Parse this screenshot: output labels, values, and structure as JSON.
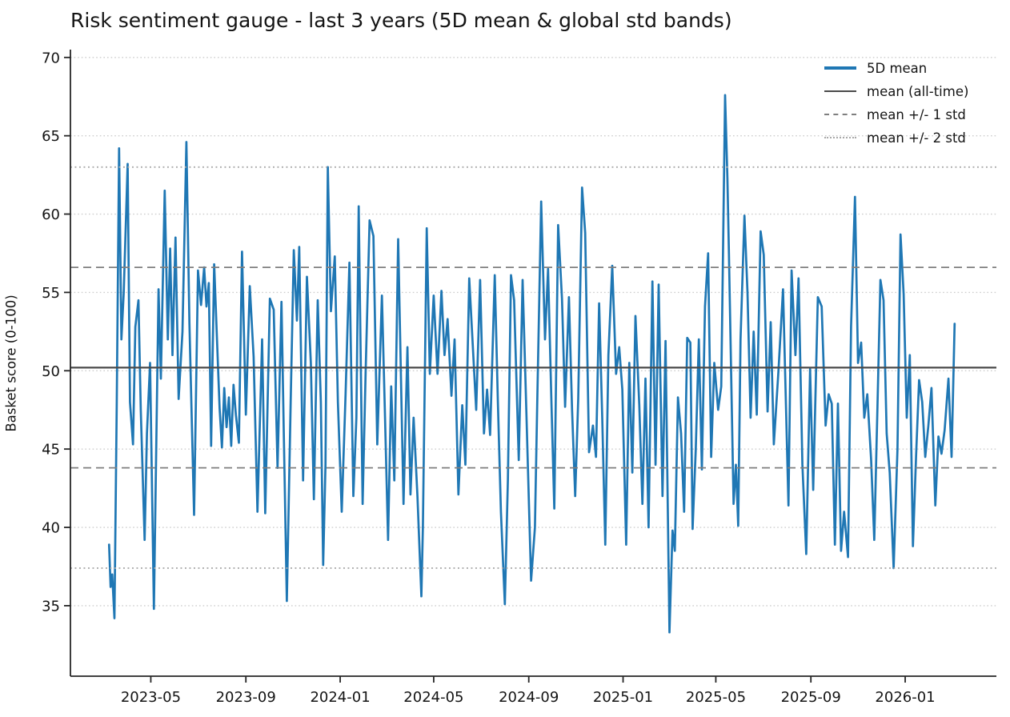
{
  "chart_data": {
    "type": "line",
    "title": "Risk sentiment gauge - last 3 years (5D mean & global std bands)",
    "xlabel": "",
    "ylabel": "Basket score (0-100)",
    "grid": "horizontal dotted gridlines at each y tick",
    "legend_position": "upper right, no frame",
    "ylim": [
      30.5,
      70.5
    ],
    "yticks": [
      35,
      40,
      45,
      50,
      55,
      60,
      65,
      70
    ],
    "x_unit": "days since first plotted point (approx 2023-03-08)",
    "xlim_days": [
      -50,
      1148
    ],
    "xticks": [
      {
        "label": "2023-05",
        "day": 54
      },
      {
        "label": "2023-09",
        "day": 177
      },
      {
        "label": "2024-01",
        "day": 299
      },
      {
        "label": "2024-05",
        "day": 420
      },
      {
        "label": "2024-09",
        "day": 543
      },
      {
        "label": "2025-01",
        "day": 665
      },
      {
        "label": "2025-05",
        "day": 785
      },
      {
        "label": "2025-09",
        "day": 908
      },
      {
        "label": "2026-01",
        "day": 1030
      }
    ],
    "legend": [
      {
        "label": "5D mean",
        "style": "series"
      },
      {
        "label": "mean (all-time)",
        "style": "mean"
      },
      {
        "label": "mean +/- 1 std",
        "style": "std1"
      },
      {
        "label": "mean +/- 2 std",
        "style": "std2"
      }
    ],
    "stats": {
      "mean_all_time": 50.2,
      "std": 6.4,
      "mean_plus_1std": 56.6,
      "mean_minus_1std": 43.8,
      "mean_plus_2std": 63.0,
      "mean_minus_2std": 37.4
    },
    "series": [
      {
        "name": "5D mean",
        "color": "#1f77b4",
        "points": [
          [
            0,
            38.9
          ],
          [
            2,
            36.2
          ],
          [
            4,
            37.0
          ],
          [
            7,
            34.2
          ],
          [
            10,
            48.0
          ],
          [
            13,
            64.2
          ],
          [
            16,
            52.0
          ],
          [
            19,
            55.0
          ],
          [
            24,
            63.2
          ],
          [
            27,
            48.0
          ],
          [
            31,
            45.3
          ],
          [
            34,
            52.8
          ],
          [
            38,
            54.5
          ],
          [
            41,
            47.5
          ],
          [
            46,
            39.2
          ],
          [
            49,
            46.0
          ],
          [
            53,
            50.5
          ],
          [
            58,
            34.8
          ],
          [
            61,
            45.0
          ],
          [
            64,
            55.2
          ],
          [
            67,
            49.5
          ],
          [
            72,
            61.5
          ],
          [
            76,
            52.0
          ],
          [
            79,
            57.8
          ],
          [
            82,
            51.0
          ],
          [
            86,
            58.5
          ],
          [
            90,
            48.2
          ],
          [
            95,
            52.5
          ],
          [
            100,
            64.6
          ],
          [
            104,
            53.0
          ],
          [
            110,
            40.8
          ],
          [
            115,
            56.4
          ],
          [
            119,
            54.2
          ],
          [
            123,
            56.6
          ],
          [
            126,
            54.1
          ],
          [
            129,
            55.6
          ],
          [
            132,
            45.2
          ],
          [
            136,
            56.8
          ],
          [
            140,
            51.5
          ],
          [
            143,
            47.6
          ],
          [
            146,
            45.1
          ],
          [
            149,
            48.9
          ],
          [
            152,
            46.4
          ],
          [
            155,
            48.3
          ],
          [
            158,
            45.2
          ],
          [
            161,
            49.1
          ],
          [
            164,
            47.2
          ],
          [
            168,
            45.4
          ],
          [
            172,
            57.6
          ],
          [
            177,
            47.2
          ],
          [
            182,
            55.4
          ],
          [
            187,
            50.9
          ],
          [
            192,
            41.0
          ],
          [
            198,
            52.0
          ],
          [
            202,
            40.9
          ],
          [
            208,
            54.6
          ],
          [
            213,
            53.9
          ],
          [
            218,
            43.8
          ],
          [
            223,
            54.4
          ],
          [
            226,
            46.0
          ],
          [
            230,
            35.3
          ],
          [
            235,
            48.0
          ],
          [
            239,
            57.7
          ],
          [
            243,
            53.2
          ],
          [
            246,
            57.9
          ],
          [
            251,
            43.0
          ],
          [
            256,
            56.0
          ],
          [
            261,
            50.5
          ],
          [
            265,
            41.8
          ],
          [
            270,
            54.5
          ],
          [
            274,
            48.0
          ],
          [
            277,
            37.6
          ],
          [
            280,
            44.0
          ],
          [
            283,
            63.0
          ],
          [
            287,
            53.8
          ],
          [
            292,
            57.3
          ],
          [
            296,
            48.0
          ],
          [
            301,
            41.0
          ],
          [
            306,
            48.5
          ],
          [
            311,
            56.9
          ],
          [
            316,
            42.0
          ],
          [
            320,
            47.0
          ],
          [
            323,
            60.5
          ],
          [
            328,
            41.5
          ],
          [
            332,
            50.0
          ],
          [
            337,
            59.6
          ],
          [
            342,
            58.6
          ],
          [
            347,
            45.3
          ],
          [
            353,
            54.8
          ],
          [
            357,
            47.0
          ],
          [
            361,
            39.2
          ],
          [
            365,
            49.0
          ],
          [
            369,
            43.0
          ],
          [
            374,
            58.4
          ],
          [
            381,
            41.5
          ],
          [
            386,
            51.5
          ],
          [
            390,
            42.1
          ],
          [
            394,
            47.0
          ],
          [
            399,
            42.0
          ],
          [
            404,
            35.6
          ],
          [
            406,
            40.0
          ],
          [
            411,
            59.1
          ],
          [
            415,
            49.8
          ],
          [
            420,
            54.8
          ],
          [
            425,
            49.8
          ],
          [
            430,
            55.1
          ],
          [
            434,
            51.0
          ],
          [
            438,
            53.3
          ],
          [
            443,
            48.4
          ],
          [
            447,
            52.0
          ],
          [
            452,
            42.1
          ],
          [
            457,
            47.8
          ],
          [
            461,
            44.0
          ],
          [
            466,
            55.9
          ],
          [
            475,
            47.5
          ],
          [
            480,
            55.8
          ],
          [
            485,
            46.0
          ],
          [
            489,
            48.8
          ],
          [
            493,
            45.9
          ],
          [
            499,
            56.1
          ],
          [
            503,
            48.0
          ],
          [
            507,
            41.0
          ],
          [
            512,
            35.1
          ],
          [
            516,
            43.0
          ],
          [
            520,
            56.1
          ],
          [
            524,
            54.5
          ],
          [
            530,
            44.3
          ],
          [
            535,
            55.8
          ],
          [
            539,
            49.0
          ],
          [
            546,
            36.6
          ],
          [
            551,
            40.0
          ],
          [
            554,
            48.0
          ],
          [
            559,
            60.8
          ],
          [
            564,
            52.0
          ],
          [
            568,
            56.5
          ],
          [
            572,
            48.6
          ],
          [
            576,
            41.2
          ],
          [
            581,
            59.3
          ],
          [
            586,
            54.6
          ],
          [
            590,
            47.7
          ],
          [
            595,
            54.7
          ],
          [
            599,
            47.5
          ],
          [
            603,
            42.0
          ],
          [
            607,
            48.2
          ],
          [
            612,
            61.7
          ],
          [
            616,
            58.8
          ],
          [
            621,
            44.8
          ],
          [
            626,
            46.5
          ],
          [
            630,
            44.5
          ],
          [
            634,
            54.3
          ],
          [
            638,
            47.0
          ],
          [
            642,
            38.9
          ],
          [
            646,
            51.0
          ],
          [
            651,
            56.7
          ],
          [
            656,
            49.8
          ],
          [
            660,
            51.5
          ],
          [
            664,
            48.8
          ],
          [
            669,
            38.9
          ],
          [
            673,
            50.5
          ],
          [
            677,
            43.5
          ],
          [
            681,
            53.5
          ],
          [
            686,
            47.8
          ],
          [
            690,
            41.5
          ],
          [
            694,
            49.5
          ],
          [
            698,
            40.0
          ],
          [
            703,
            55.7
          ],
          [
            707,
            44.0
          ],
          [
            711,
            55.5
          ],
          [
            716,
            42.0
          ],
          [
            720,
            51.9
          ],
          [
            725,
            33.3
          ],
          [
            729,
            39.8
          ],
          [
            732,
            38.5
          ],
          [
            736,
            48.3
          ],
          [
            740,
            46.0
          ],
          [
            744,
            41.0
          ],
          [
            748,
            52.1
          ],
          [
            752,
            51.8
          ],
          [
            755,
            39.9
          ],
          [
            759,
            44.9
          ],
          [
            763,
            52.0
          ],
          [
            767,
            43.7
          ],
          [
            771,
            54.1
          ],
          [
            775,
            57.5
          ],
          [
            779,
            44.5
          ],
          [
            783,
            50.5
          ],
          [
            788,
            47.5
          ],
          [
            792,
            49.0
          ],
          [
            797,
            67.6
          ],
          [
            800,
            62.3
          ],
          [
            802,
            57.5
          ],
          [
            808,
            41.5
          ],
          [
            811,
            44.0
          ],
          [
            814,
            40.1
          ],
          [
            817,
            52.0
          ],
          [
            822,
            59.9
          ],
          [
            826,
            55.0
          ],
          [
            830,
            47.0
          ],
          [
            834,
            52.5
          ],
          [
            838,
            47.2
          ],
          [
            843,
            58.9
          ],
          [
            847,
            57.4
          ],
          [
            852,
            47.4
          ],
          [
            856,
            53.1
          ],
          [
            860,
            45.3
          ],
          [
            866,
            50.0
          ],
          [
            872,
            55.2
          ],
          [
            879,
            41.4
          ],
          [
            883,
            56.4
          ],
          [
            888,
            51.0
          ],
          [
            892,
            55.9
          ],
          [
            897,
            44.0
          ],
          [
            902,
            38.3
          ],
          [
            907,
            50.1
          ],
          [
            911,
            42.4
          ],
          [
            917,
            54.7
          ],
          [
            922,
            54.1
          ],
          [
            927,
            46.5
          ],
          [
            931,
            48.5
          ],
          [
            935,
            47.9
          ],
          [
            939,
            38.9
          ],
          [
            943,
            47.9
          ],
          [
            947,
            38.5
          ],
          [
            951,
            41.0
          ],
          [
            956,
            38.1
          ],
          [
            960,
            52.8
          ],
          [
            965,
            61.1
          ],
          [
            969,
            50.5
          ],
          [
            973,
            51.8
          ],
          [
            977,
            47.0
          ],
          [
            981,
            48.5
          ],
          [
            986,
            44.3
          ],
          [
            990,
            39.2
          ],
          [
            994,
            47.5
          ],
          [
            998,
            55.8
          ],
          [
            1002,
            54.5
          ],
          [
            1006,
            46.0
          ],
          [
            1010,
            43.5
          ],
          [
            1015,
            37.4
          ],
          [
            1020,
            45.0
          ],
          [
            1024,
            58.7
          ],
          [
            1028,
            54.9
          ],
          [
            1032,
            47.0
          ],
          [
            1036,
            51.0
          ],
          [
            1040,
            38.8
          ],
          [
            1044,
            44.5
          ],
          [
            1048,
            49.4
          ],
          [
            1052,
            48.0
          ],
          [
            1056,
            44.5
          ],
          [
            1060,
            46.5
          ],
          [
            1064,
            48.9
          ],
          [
            1069,
            41.4
          ],
          [
            1073,
            45.8
          ],
          [
            1077,
            44.7
          ],
          [
            1081,
            46.2
          ],
          [
            1086,
            49.5
          ],
          [
            1090,
            44.5
          ],
          [
            1094,
            53.0
          ]
        ]
      }
    ]
  },
  "colors": {
    "series": "#1f77b4",
    "mean_line": "#4a4a4a",
    "std1_line": "#7f7f7f",
    "std2_line": "#a9a9a9",
    "grid_line": "#cdcdcd",
    "axis": "#262626",
    "text": "#141414"
  }
}
